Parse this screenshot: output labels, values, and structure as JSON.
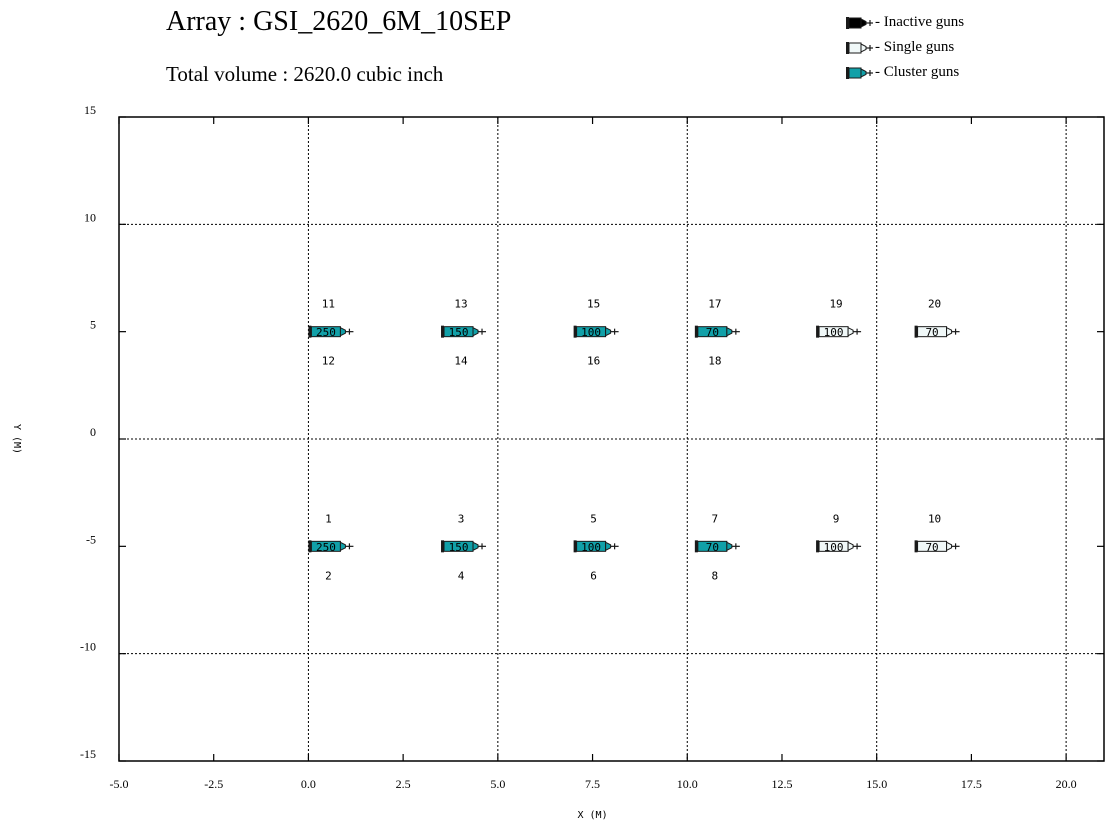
{
  "header": {
    "title": "Array : GSI_2620_6M_10SEP",
    "subtitle": "Total volume :  2620.0 cubic inch"
  },
  "legend": {
    "items": [
      {
        "label": "- Inactive guns",
        "kind": "inactive"
      },
      {
        "label": "- Single guns",
        "kind": "single"
      },
      {
        "label": "- Cluster guns",
        "kind": "cluster"
      }
    ]
  },
  "colors": {
    "inactive": "#000000",
    "single": "#f0f8f8",
    "cluster": "#11a0a8",
    "outline": "#1a1a1a"
  },
  "chart_data": {
    "type": "scatter",
    "xlabel": "X (M)",
    "ylabel": "Y (M)",
    "xlim": [
      -5.0,
      21.0
    ],
    "ylim": [
      -15,
      15
    ],
    "xticks": [
      -5.0,
      -2.5,
      0.0,
      2.5,
      5.0,
      7.5,
      10.0,
      12.5,
      15.0,
      17.5,
      20.0
    ],
    "xtick_labels": [
      "-5.0",
      "-2.5",
      "0.0",
      "2.5",
      "5.0",
      "7.5",
      "10.0",
      "12.5",
      "15.0",
      "17.5",
      "20.0"
    ],
    "yticks": [
      -15,
      -10,
      -5,
      0,
      5,
      10,
      15
    ],
    "ytick_labels": [
      "-15",
      "-10",
      "-5",
      "0",
      "5",
      "10",
      "15"
    ],
    "grid_x": [
      0,
      5,
      10,
      15,
      20
    ],
    "grid_y": [
      -10,
      0,
      10
    ],
    "guns": [
      {
        "x": 0.0,
        "y": 5,
        "volume": "250",
        "type": "cluster",
        "ids": [
          "11",
          "12"
        ]
      },
      {
        "x": 3.5,
        "y": 5,
        "volume": "150",
        "type": "cluster",
        "ids": [
          "13",
          "14"
        ]
      },
      {
        "x": 7.0,
        "y": 5,
        "volume": "100",
        "type": "cluster",
        "ids": [
          "15",
          "16"
        ]
      },
      {
        "x": 10.2,
        "y": 5,
        "volume": "70",
        "type": "cluster",
        "ids": [
          "17",
          "18"
        ]
      },
      {
        "x": 13.4,
        "y": 5,
        "volume": "100",
        "type": "single",
        "ids": [
          "19"
        ]
      },
      {
        "x": 16.0,
        "y": 5,
        "volume": "70",
        "type": "single",
        "ids": [
          "20"
        ]
      },
      {
        "x": 0.0,
        "y": -5,
        "volume": "250",
        "type": "cluster",
        "ids": [
          "1",
          "2"
        ]
      },
      {
        "x": 3.5,
        "y": -5,
        "volume": "150",
        "type": "cluster",
        "ids": [
          "3",
          "4"
        ]
      },
      {
        "x": 7.0,
        "y": -5,
        "volume": "100",
        "type": "cluster",
        "ids": [
          "5",
          "6"
        ]
      },
      {
        "x": 10.2,
        "y": -5,
        "volume": "70",
        "type": "cluster",
        "ids": [
          "7",
          "8"
        ]
      },
      {
        "x": 13.4,
        "y": -5,
        "volume": "100",
        "type": "single",
        "ids": [
          "9"
        ]
      },
      {
        "x": 16.0,
        "y": -5,
        "volume": "70",
        "type": "single",
        "ids": [
          "10"
        ]
      }
    ]
  }
}
